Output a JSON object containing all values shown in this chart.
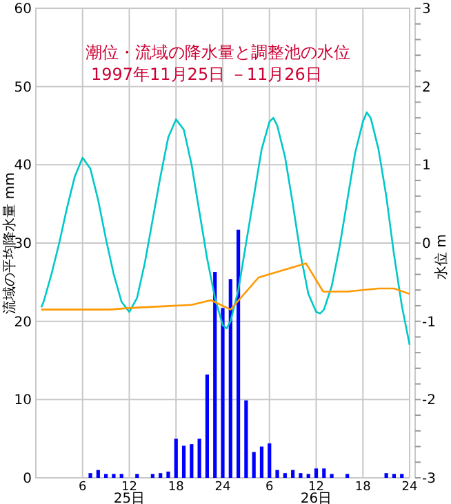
{
  "chart_data": {
    "type": "bar",
    "title": "潮位・流域の降水量と調整池の水位",
    "subtitle": "1997年11月25日 －11月26日",
    "ylabel": "流域の平均降水量 mm",
    "y2label": "水位 m",
    "annotations": [
      "25日",
      "26日"
    ],
    "xlim": [
      "1997-11-25T00:00",
      "1997-11-27T00:00"
    ],
    "xticks": [
      {
        "value": "1997-11-25T06:00",
        "label": "6"
      },
      {
        "value": "1997-11-25T12:00",
        "label": "12"
      },
      {
        "value": "1997-11-25T18:00",
        "label": "18"
      },
      {
        "value": "1997-11-26T00:00",
        "label": "24"
      },
      {
        "value": "1997-11-26T06:00",
        "label": "6"
      },
      {
        "value": "1997-11-26T12:00",
        "label": "12"
      },
      {
        "value": "1997-11-26T18:00",
        "label": "18"
      },
      {
        "value": "1997-11-27T00:00",
        "label": "24"
      }
    ],
    "ylim": [
      0,
      60
    ],
    "yticks": [
      0,
      10,
      20,
      30,
      40,
      50,
      60
    ],
    "y2lim": [
      -3,
      3
    ],
    "y2ticks": [
      -3,
      {
        "value": -2.8,
        "label": null
      },
      {
        "value": -2.6,
        "label": null
      },
      {
        "value": -2.4,
        "label": null
      },
      {
        "value": -2.2,
        "label": null
      },
      -2,
      {
        "value": -1.8,
        "label": null
      },
      {
        "value": -1.6,
        "label": null
      },
      {
        "value": -1.4,
        "label": null
      },
      {
        "value": -1.2,
        "label": null
      },
      -1,
      {
        "value": -0.8,
        "label": null
      },
      {
        "value": -0.6,
        "label": null
      },
      {
        "value": -0.4,
        "label": null
      },
      {
        "value": -0.2,
        "label": null
      },
      0,
      {
        "value": 0.2,
        "label": null
      },
      {
        "value": 0.4,
        "label": null
      },
      {
        "value": 0.6,
        "label": null
      },
      {
        "value": 0.8,
        "label": null
      },
      1,
      {
        "value": 1.2,
        "label": null
      },
      {
        "value": 1.4,
        "label": null
      },
      {
        "value": 1.6,
        "label": null
      },
      {
        "value": 1.8,
        "label": null
      },
      2,
      {
        "value": 2.2,
        "label": null
      },
      {
        "value": 2.4,
        "label": null
      },
      {
        "value": 2.6,
        "label": null
      },
      {
        "value": 2.8,
        "label": null
      },
      3
    ],
    "grid": true,
    "series": [
      {
        "color": "#0000ff",
        "x": [
          "1997-11-25T07:00",
          "1997-11-25T08:00",
          "1997-11-25T09:00",
          "1997-11-25T10:00",
          "1997-11-25T11:00",
          "1997-11-25T13:00",
          "1997-11-25T15:00",
          "1997-11-25T16:00",
          "1997-11-25T17:00",
          "1997-11-25T18:00",
          "1997-11-25T19:00",
          "1997-11-25T20:00",
          "1997-11-25T21:00",
          "1997-11-25T22:00",
          "1997-11-25T23:00",
          "1997-11-26T00:00",
          "1997-11-26T01:00",
          "1997-11-26T02:00",
          "1997-11-26T03:00",
          "1997-11-26T04:00",
          "1997-11-26T05:00",
          "1997-11-26T06:00",
          "1997-11-26T07:00",
          "1997-11-26T08:00",
          "1997-11-26T09:00",
          "1997-11-26T10:00",
          "1997-11-26T11:00",
          "1997-11-26T12:00",
          "1997-11-26T13:00",
          "1997-11-26T14:00",
          "1997-11-26T16:00",
          "1997-11-26T21:00",
          "1997-11-26T22:00",
          "1997-11-26T23:00"
        ],
        "values": [
          0.6,
          1.0,
          0.5,
          0.5,
          0.5,
          0.5,
          0.5,
          0.6,
          0.8,
          5.0,
          4.1,
          4.3,
          5.0,
          13.2,
          26.3,
          21.7,
          25.4,
          31.7,
          9.9,
          3.3,
          4.0,
          4.4,
          1.0,
          0.6,
          1.0,
          0.6,
          0.5,
          1.2,
          1.2,
          0.5,
          0.5,
          0.6,
          0.5,
          0.5
        ]
      },
      {
        "type": "line",
        "axis": "y2",
        "color": "#00c8c8",
        "x": [
          "1997-11-25T00:42",
          "1997-11-25T01:00",
          "1997-11-25T02:00",
          "1997-11-25T03:00",
          "1997-11-25T04:00",
          "1997-11-25T05:00",
          "1997-11-25T06:00",
          "1997-11-25T07:00",
          "1997-11-25T08:00",
          "1997-11-25T09:00",
          "1997-11-25T10:00",
          "1997-11-25T11:00",
          "1997-11-25T12:00",
          "1997-11-25T13:00",
          "1997-11-25T14:00",
          "1997-11-25T15:00",
          "1997-11-25T16:00",
          "1997-11-25T17:00",
          "1997-11-25T18:00",
          "1997-11-25T19:00",
          "1997-11-25T20:00",
          "1997-11-25T21:00",
          "1997-11-25T22:00",
          "1997-11-25T23:00",
          "1997-11-26T00:00",
          "1997-11-26T00:30",
          "1997-11-26T01:00",
          "1997-11-26T02:00",
          "1997-11-26T03:00",
          "1997-11-26T04:00",
          "1997-11-26T05:00",
          "1997-11-26T06:00",
          "1997-11-26T06:30",
          "1997-11-26T07:00",
          "1997-11-26T08:00",
          "1997-11-26T09:00",
          "1997-11-26T10:00",
          "1997-11-26T11:00",
          "1997-11-26T12:00",
          "1997-11-26T12:30",
          "1997-11-26T13:00",
          "1997-11-26T14:00",
          "1997-11-26T15:00",
          "1997-11-26T16:00",
          "1997-11-26T17:00",
          "1997-11-26T18:00",
          "1997-11-26T18:30",
          "1997-11-26T19:00",
          "1997-11-26T20:00",
          "1997-11-26T21:00",
          "1997-11-26T22:00",
          "1997-11-26T23:00",
          "1997-11-27T00:00"
        ],
        "values": [
          -0.82,
          -0.75,
          -0.4,
          0.0,
          0.45,
          0.85,
          1.09,
          0.95,
          0.55,
          0.05,
          -0.4,
          -0.75,
          -0.88,
          -0.7,
          -0.25,
          0.3,
          0.85,
          1.35,
          1.58,
          1.45,
          1.0,
          0.4,
          -0.2,
          -0.7,
          -1.05,
          -1.09,
          -1.0,
          -0.6,
          0.0,
          0.6,
          1.2,
          1.55,
          1.6,
          1.5,
          1.1,
          0.5,
          -0.15,
          -0.65,
          -0.88,
          -0.9,
          -0.85,
          -0.55,
          -0.05,
          0.55,
          1.15,
          1.55,
          1.67,
          1.6,
          1.2,
          0.6,
          -0.15,
          -0.8,
          -1.3
        ]
      },
      {
        "type": "line",
        "axis": "y2",
        "color": "#ff9900",
        "x": [
          "1997-11-25T00:42",
          "1997-11-25T09:30",
          "1997-11-25T12:00",
          "1997-11-25T20:00",
          "1997-11-25T22:30",
          "1997-11-26T01:00",
          "1997-11-26T04:36",
          "1997-11-26T10:42",
          "1997-11-26T12:54",
          "1997-11-26T16:00",
          "1997-11-26T20:00",
          "1997-11-26T22:00",
          "1997-11-27T00:00"
        ],
        "values": [
          -0.85,
          -0.85,
          -0.83,
          -0.79,
          -0.73,
          -0.85,
          -0.44,
          -0.26,
          -0.62,
          -0.62,
          -0.58,
          -0.58,
          -0.65
        ]
      }
    ]
  }
}
